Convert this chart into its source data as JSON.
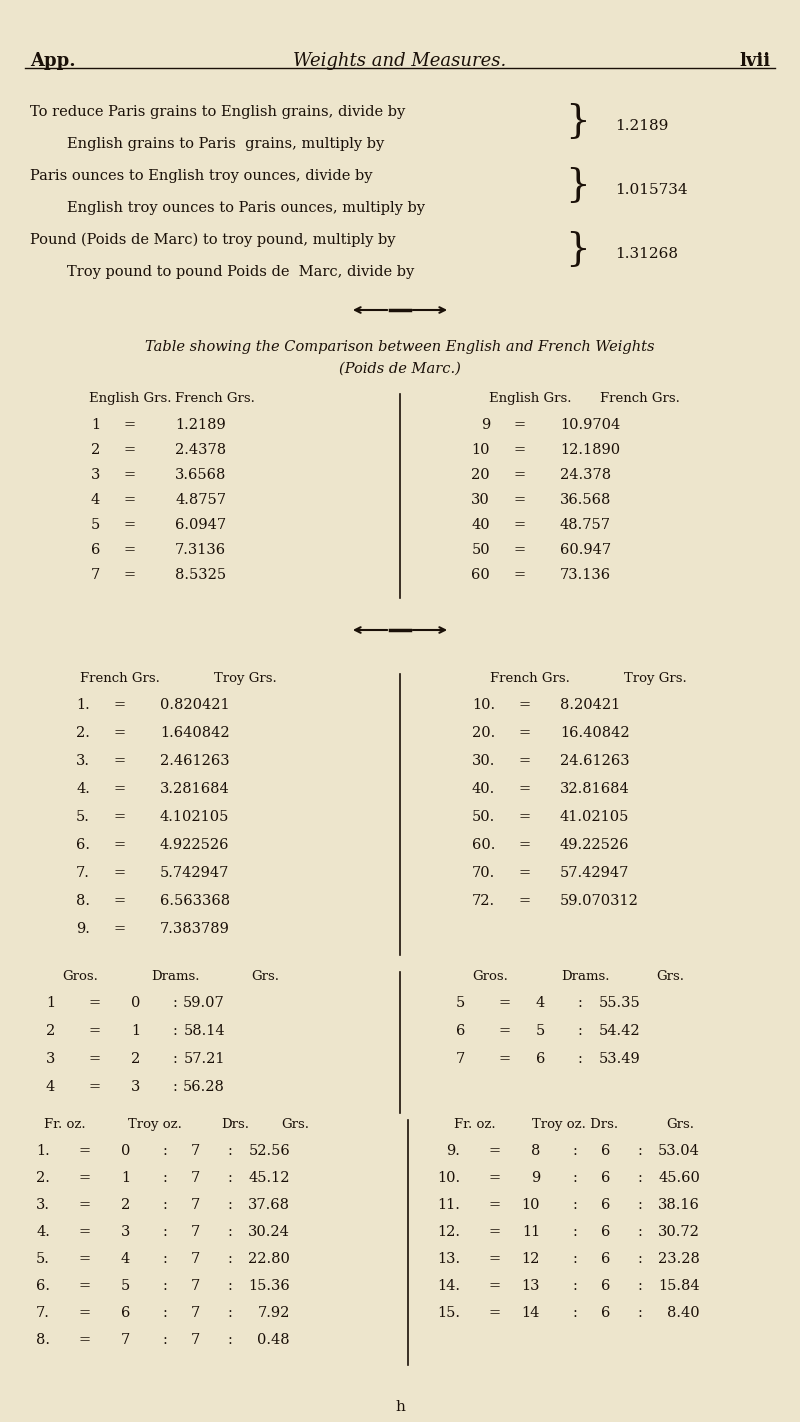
{
  "bg_color": "#ede5cc",
  "text_color": "#1a1008",
  "page_width": 8.0,
  "page_height": 14.22,
  "header_left": "App.",
  "header_center": "Weights and Measures.",
  "header_right": "lvii",
  "intro_line1a": "To reduce Paris grains to English grains, divide by",
  "intro_line1b": "        English grains to Paris  grains, multiply by",
  "intro_line2a": "Paris ounces to English troy ounces, divide by",
  "intro_line2b": "        English troy ounces to Paris ounces, multiply by",
  "intro_line3a": "Pound (Poids de Marc) to troy pound, multiply by",
  "intro_line3b": "        Troy pound to pound Poids de  Marc, divide by",
  "val1": "1.2189",
  "val2": "1.015734",
  "val3": "1.31268",
  "divider_char": "—◆◆—",
  "table1_title": "Table showing the Comparison between English and French Weights",
  "table1_subtitle": "(Poids de Marc.)",
  "t1_lh1": "English Grs.",
  "t1_lh2": "French Grs.",
  "t1_rh1": "English Grs.",
  "t1_rh2": "French Grs.",
  "table1_left": [
    [
      "1",
      "1.2189"
    ],
    [
      "2",
      "2.4378"
    ],
    [
      "3",
      "3.6568"
    ],
    [
      "4",
      "4.8757"
    ],
    [
      "5",
      "6.0947"
    ],
    [
      "6",
      "7.3136"
    ],
    [
      "7",
      "8.5325"
    ]
  ],
  "table1_right": [
    [
      "9",
      "10.9704"
    ],
    [
      "10",
      "12.1890"
    ],
    [
      "20",
      "24.378"
    ],
    [
      "30",
      "36.568"
    ],
    [
      "40",
      "48.757"
    ],
    [
      "50",
      "60.947"
    ],
    [
      "60",
      "73.136"
    ]
  ],
  "t2_lh1": "French Grs.",
  "t2_lh2": "Troy Grs.",
  "t2_rh1": "French Grs.",
  "t2_rh2": "Troy Grs.",
  "table2_left": [
    [
      "1.",
      "0.820421"
    ],
    [
      "2.",
      "1.640842"
    ],
    [
      "3.",
      "2.461263"
    ],
    [
      "4.",
      "3.281684"
    ],
    [
      "5.",
      "4.102105"
    ],
    [
      "6.",
      "4.922526"
    ],
    [
      "7.",
      "5.742947"
    ],
    [
      "8.",
      "6.563368"
    ],
    [
      "9.",
      "7.383789"
    ]
  ],
  "table2_right": [
    [
      "10.",
      "8.20421"
    ],
    [
      "20.",
      "16.40842"
    ],
    [
      "30.",
      "24.61263"
    ],
    [
      "40.",
      "32.81684"
    ],
    [
      "50.",
      "41.02105"
    ],
    [
      "60.",
      "49.22526"
    ],
    [
      "70.",
      "57.42947"
    ],
    [
      "72.",
      "59.070312"
    ]
  ],
  "t3_lh": [
    "Gros.",
    "Drams.",
    "Grs."
  ],
  "t3_rh": [
    "Gros.",
    "Drams.",
    "Grs."
  ],
  "table3_left": [
    [
      "1",
      "0",
      "59.07"
    ],
    [
      "2",
      "1",
      "58.14"
    ],
    [
      "3",
      "2",
      "57.21"
    ],
    [
      "4",
      "3",
      "56.28"
    ]
  ],
  "table3_right": [
    [
      "5",
      "4",
      "55.35"
    ],
    [
      "6",
      "5",
      "54.42"
    ],
    [
      "7",
      "6",
      "53.49"
    ]
  ],
  "t4_lh": [
    "Fr. oz.",
    "Troy oz.",
    "Drs.",
    "Grs."
  ],
  "t4_rh": [
    "Fr. oz.",
    "Troy oz. Drs.",
    "Grs."
  ],
  "table4_left": [
    [
      "1.",
      "0",
      "7",
      "52.56"
    ],
    [
      "2.",
      "1",
      "7",
      "45.12"
    ],
    [
      "3.",
      "2",
      "7",
      "37.68"
    ],
    [
      "4.",
      "3",
      "7",
      "30.24"
    ],
    [
      "5.",
      "4",
      "7",
      "22.80"
    ],
    [
      "6.",
      "5",
      "7",
      "15.36"
    ],
    [
      "7.",
      "6",
      "7",
      "7.92"
    ],
    [
      "8.",
      "7",
      "7",
      "0.48"
    ]
  ],
  "table4_right": [
    [
      "9.",
      "8",
      "6",
      "53.04"
    ],
    [
      "10.",
      "9",
      "6",
      "45.60"
    ],
    [
      "11.",
      "10",
      "6",
      "38.16"
    ],
    [
      "12.",
      "11",
      "6",
      "30.72"
    ],
    [
      "13.",
      "12",
      "6",
      "23.28"
    ],
    [
      "14.",
      "13",
      "6",
      "15.84"
    ],
    [
      "15.",
      "14",
      "6",
      "8.40"
    ]
  ],
  "footer": "h"
}
